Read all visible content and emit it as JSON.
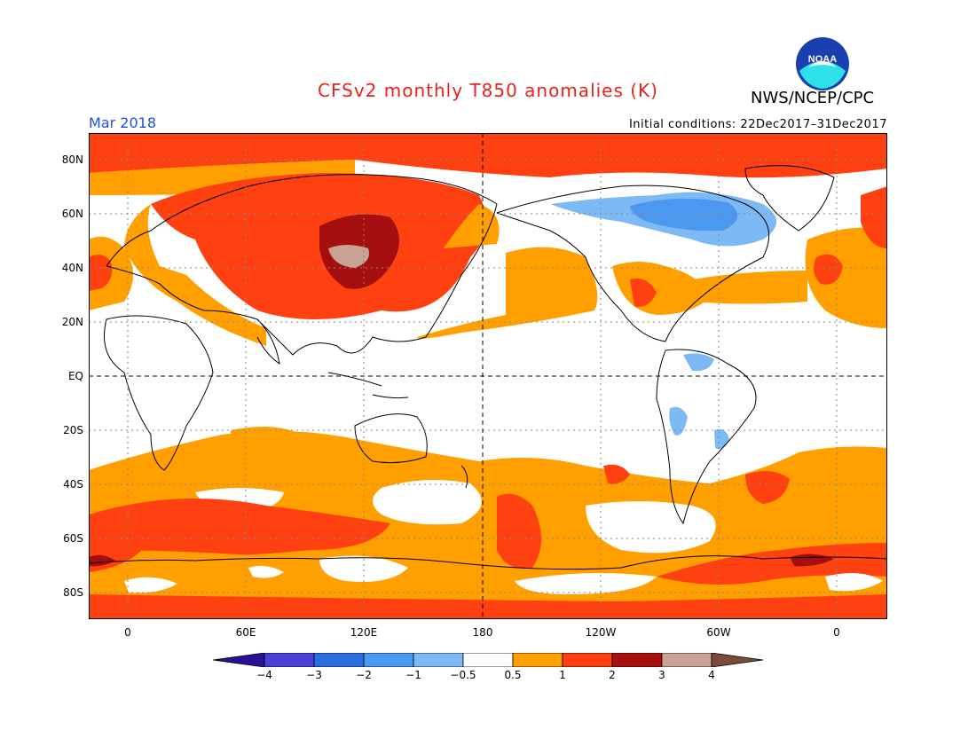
{
  "title": "CFSv2 monthly T850 anomalies (K)",
  "organization": "NWS/NCEP/CPC",
  "logo_text": "NOAA",
  "period": "Mar 2018",
  "initial_conditions": "Initial conditions: 22Dec2017–31Dec2017",
  "lat_labels": [
    "80N",
    "60N",
    "40N",
    "20N",
    "EQ",
    "20S",
    "40S",
    "60S",
    "80S"
  ],
  "lon_labels": [
    "0",
    "60E",
    "120E",
    "180",
    "120W",
    "60W",
    "0"
  ],
  "colorbar": {
    "labels": [
      "−4",
      "−3",
      "−2",
      "−1",
      "−0.5",
      "0.5",
      "1",
      "2",
      "3",
      "4"
    ],
    "colors": [
      "#2a0f99",
      "#4a3fd6",
      "#2a6ee0",
      "#4a98f0",
      "#7dbaf5",
      "#ffffff",
      "#ffa000",
      "#ff4010",
      "#a50f0f",
      "#c8a394",
      "#7a4a3a"
    ]
  }
}
